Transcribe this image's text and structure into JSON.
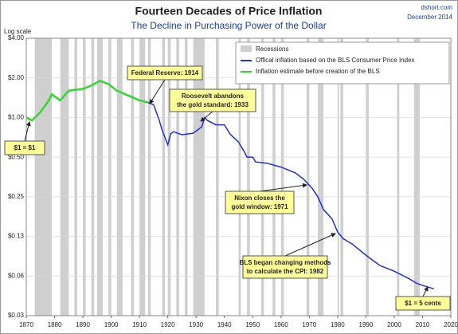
{
  "chart_data": {
    "type": "line",
    "title": "Fourteen Decades of Price Inflation",
    "subtitle": "The Decline in Purchasing Power of the Dollar",
    "source": "dshort.com",
    "date": "December 2014",
    "y_label": "Log scale",
    "log_scale": true,
    "grid": true,
    "legend": "upper right",
    "xlim": [
      1870,
      2020
    ],
    "xticks": [
      1870,
      1880,
      1890,
      1900,
      1910,
      1920,
      1930,
      1940,
      1950,
      1960,
      1970,
      1980,
      1990,
      2000,
      2010,
      2020
    ],
    "ylim": [
      0.03125,
      4
    ],
    "yticks": [
      {
        "value": 4,
        "label": "$4.00"
      },
      {
        "value": 2,
        "label": "$2.00"
      },
      {
        "value": 1,
        "label": "$1.00"
      },
      {
        "value": 0.5,
        "label": "$0.50"
      },
      {
        "value": 0.25,
        "label": "$0.25"
      },
      {
        "value": 0.125,
        "label": "$0.13"
      },
      {
        "value": 0.0625,
        "label": "$0.06"
      },
      {
        "value": 0.03125,
        "label": "$0.03"
      }
    ],
    "recessions": {
      "name": "Recessions",
      "color": "#cfcfcf",
      "ranges": [
        [
          1873,
          1879
        ],
        [
          1882,
          1885
        ],
        [
          1887,
          1888
        ],
        [
          1890,
          1891
        ],
        [
          1893,
          1894
        ],
        [
          1895,
          1897
        ],
        [
          1899,
          1900
        ],
        [
          1902,
          1904
        ],
        [
          1907,
          1908
        ],
        [
          1910,
          1912
        ],
        [
          1913,
          1914
        ],
        [
          1918,
          1919
        ],
        [
          1920,
          1921
        ],
        [
          1923,
          1924
        ],
        [
          1926,
          1927
        ],
        [
          1929,
          1933
        ],
        [
          1937,
          1938
        ],
        [
          1945,
          1945.8
        ],
        [
          1948,
          1949
        ],
        [
          1953,
          1954
        ],
        [
          1957,
          1958
        ],
        [
          1960,
          1961
        ],
        [
          1969,
          1970
        ],
        [
          1973,
          1975
        ],
        [
          1980,
          1980.5
        ],
        [
          1981,
          1982
        ],
        [
          1990,
          1991
        ],
        [
          2001,
          2001.8
        ],
        [
          2007,
          2009
        ]
      ]
    },
    "series": [
      {
        "name": "Offical inflation based on the BLS Consumer Price Index",
        "color": "#1f2fd6",
        "x": [
          1913,
          1915,
          1917,
          1918,
          1920,
          1921,
          1922,
          1925,
          1929,
          1932,
          1933,
          1934,
          1937,
          1940,
          1942,
          1945,
          1947,
          1948,
          1950,
          1951,
          1955,
          1960,
          1965,
          1968,
          1971,
          1973,
          1975,
          1978,
          1980,
          1982,
          1985,
          1990,
          1995,
          2000,
          2005,
          2008,
          2010,
          2014
        ],
        "values": [
          1.3,
          1.25,
          0.95,
          0.8,
          0.62,
          0.75,
          0.78,
          0.74,
          0.76,
          0.85,
          1.0,
          0.95,
          0.88,
          0.88,
          0.75,
          0.65,
          0.55,
          0.5,
          0.5,
          0.46,
          0.45,
          0.42,
          0.38,
          0.34,
          0.29,
          0.25,
          0.2,
          0.17,
          0.135,
          0.12,
          0.11,
          0.09,
          0.075,
          0.068,
          0.06,
          0.055,
          0.053,
          0.05
        ]
      },
      {
        "name": "Inflation estimate before creation of the BLS",
        "color": "#33d633",
        "x": [
          1870,
          1872,
          1875,
          1878,
          1879,
          1880,
          1882,
          1885,
          1890,
          1893,
          1896,
          1899,
          1902,
          1905,
          1910,
          1913
        ],
        "values": [
          1.0,
          0.95,
          1.1,
          1.35,
          1.5,
          1.45,
          1.35,
          1.6,
          1.65,
          1.75,
          1.9,
          1.8,
          1.6,
          1.5,
          1.35,
          1.3
        ]
      }
    ],
    "annotations": [
      {
        "lines": [
          "$1 = $1"
        ]
      },
      {
        "lines": [
          "Federal Reserve: 1914"
        ]
      },
      {
        "lines": [
          "Roosevelt abandons",
          "the gold standard: 1933"
        ]
      },
      {
        "lines": [
          "Nixon closes the",
          "gold window: 1971"
        ]
      },
      {
        "lines": [
          "BLS began  changing methods",
          "to calculate the CPI: 1982"
        ]
      },
      {
        "lines": [
          "$1 = 5 cents"
        ]
      }
    ]
  }
}
